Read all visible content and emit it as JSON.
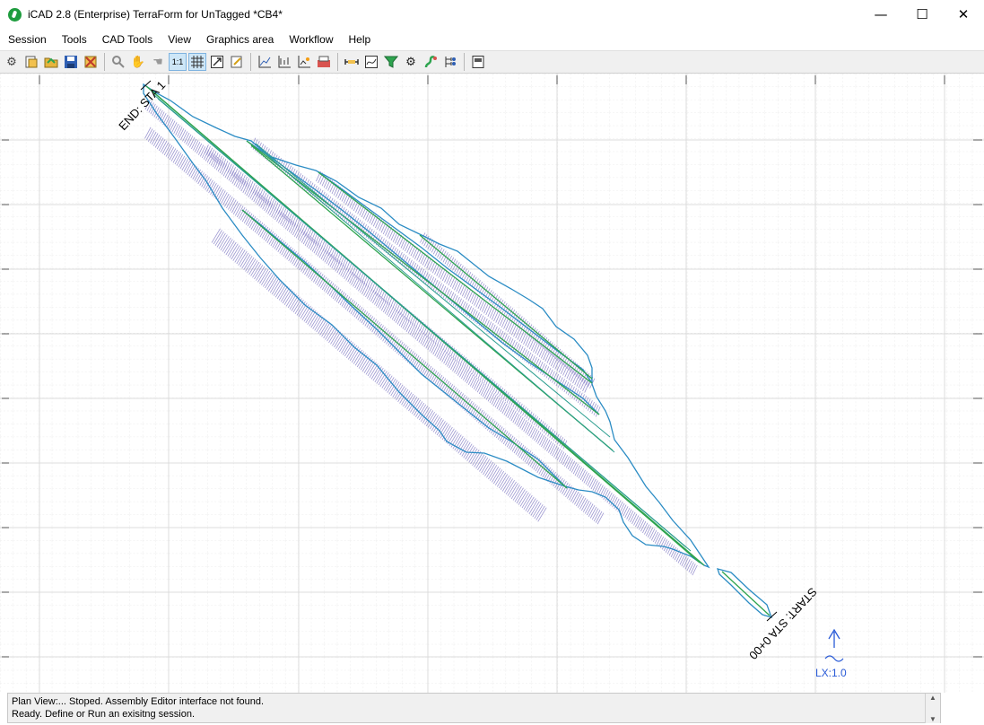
{
  "window": {
    "title": "iCAD 2.8  (Enterprise) TerraForm for UnTagged *CB4*",
    "controls": {
      "minimize": "—",
      "maximize": "☐",
      "close": "✕"
    }
  },
  "menu": [
    "Session",
    "Tools",
    "CAD Tools",
    "View",
    "Graphics area",
    "Workflow",
    "Help"
  ],
  "toolbar": [
    "settings-icon",
    "new-session-icon",
    "open-folder-icon",
    "save-icon",
    "close-session-icon",
    "zoom-icon",
    "pan-hand-icon",
    "select-hand-icon",
    "zoom-1to1-icon",
    "grid-icon",
    "zoom-extents-icon",
    "edit-note-icon",
    "profile-chart-icon",
    "section-chart-icon",
    "chart-sparkle-icon",
    "report-icon",
    "measure-icon",
    "curve-icon",
    "filter-icon",
    "gear-icon",
    "snake-icon",
    "tree-icon",
    "panel-icon"
  ],
  "canvas": {
    "end_label": "END: STA 1",
    "start_label": "START: STA 0+00",
    "scale_label": "LX:1.0",
    "colors": {
      "boundary": "#2b8cc4",
      "centerline": "#2ea44f",
      "hatch": "#8c85c9",
      "grid": "#dcdcdc",
      "scale": "#2a5bd7"
    }
  },
  "status": {
    "line1": "Plan View:... Stoped. Assembly Editor interface not found.",
    "line2": "Ready. Define or Run an exisitng session."
  }
}
